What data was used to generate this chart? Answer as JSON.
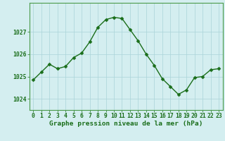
{
  "x": [
    0,
    1,
    2,
    3,
    4,
    5,
    6,
    7,
    8,
    9,
    10,
    11,
    12,
    13,
    14,
    15,
    16,
    17,
    18,
    19,
    20,
    21,
    22,
    23
  ],
  "y": [
    1024.85,
    1025.2,
    1025.55,
    1025.35,
    1025.45,
    1025.85,
    1026.05,
    1026.55,
    1027.2,
    1027.55,
    1027.65,
    1027.6,
    1027.1,
    1026.6,
    1026.0,
    1025.5,
    1024.9,
    1024.55,
    1024.2,
    1024.4,
    1024.95,
    1025.0,
    1025.3,
    1025.35
  ],
  "line_color": "#1a6e1a",
  "marker_color": "#1a6e1a",
  "bg_color": "#d4eef0",
  "grid_color": "#aad4d8",
  "axis_label_color": "#1a6e1a",
  "tick_color": "#1a6e1a",
  "border_color": "#4a9a4a",
  "xlabel": "Graphe pression niveau de la mer (hPa)",
  "ylim": [
    1023.5,
    1028.3
  ],
  "yticks": [
    1024,
    1025,
    1026,
    1027
  ],
  "xlim": [
    -0.5,
    23.5
  ],
  "xticks": [
    0,
    1,
    2,
    3,
    4,
    5,
    6,
    7,
    8,
    9,
    10,
    11,
    12,
    13,
    14,
    15,
    16,
    17,
    18,
    19,
    20,
    21,
    22,
    23
  ],
  "xlabel_fontsize": 6.8,
  "tick_fontsize": 5.8,
  "marker_size": 2.5,
  "line_width": 1.0
}
